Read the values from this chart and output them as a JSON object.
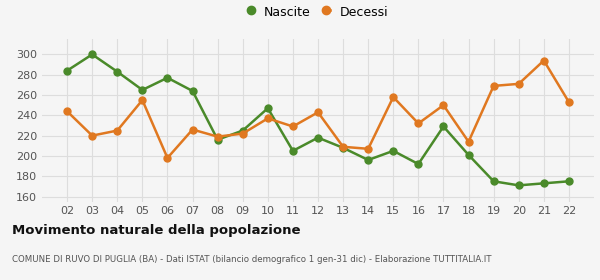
{
  "years": [
    "02",
    "03",
    "04",
    "05",
    "06",
    "07",
    "08",
    "09",
    "10",
    "11",
    "12",
    "13",
    "14",
    "15",
    "16",
    "17",
    "18",
    "19",
    "20",
    "21",
    "22"
  ],
  "nascite": [
    284,
    300,
    283,
    265,
    277,
    264,
    216,
    225,
    247,
    205,
    218,
    208,
    196,
    205,
    192,
    229,
    201,
    175,
    171,
    173,
    175
  ],
  "decessi": [
    244,
    220,
    225,
    255,
    198,
    226,
    219,
    222,
    237,
    229,
    243,
    209,
    207,
    258,
    232,
    250,
    214,
    269,
    271,
    294,
    253
  ],
  "nascite_color": "#4a8a2a",
  "decessi_color": "#e07820",
  "background_color": "#f5f5f5",
  "grid_color": "#dddddd",
  "ylim": [
    155,
    315
  ],
  "yticks": [
    160,
    180,
    200,
    220,
    240,
    260,
    280,
    300
  ],
  "title": "Movimento naturale della popolazione",
  "subtitle": "COMUNE DI RUVO DI PUGLIA (BA) - Dati ISTAT (bilancio demografico 1 gen-31 dic) - Elaborazione TUTTITALIA.IT",
  "legend_labels": [
    "Nascite",
    "Decessi"
  ],
  "marker_size": 5,
  "line_width": 1.8
}
